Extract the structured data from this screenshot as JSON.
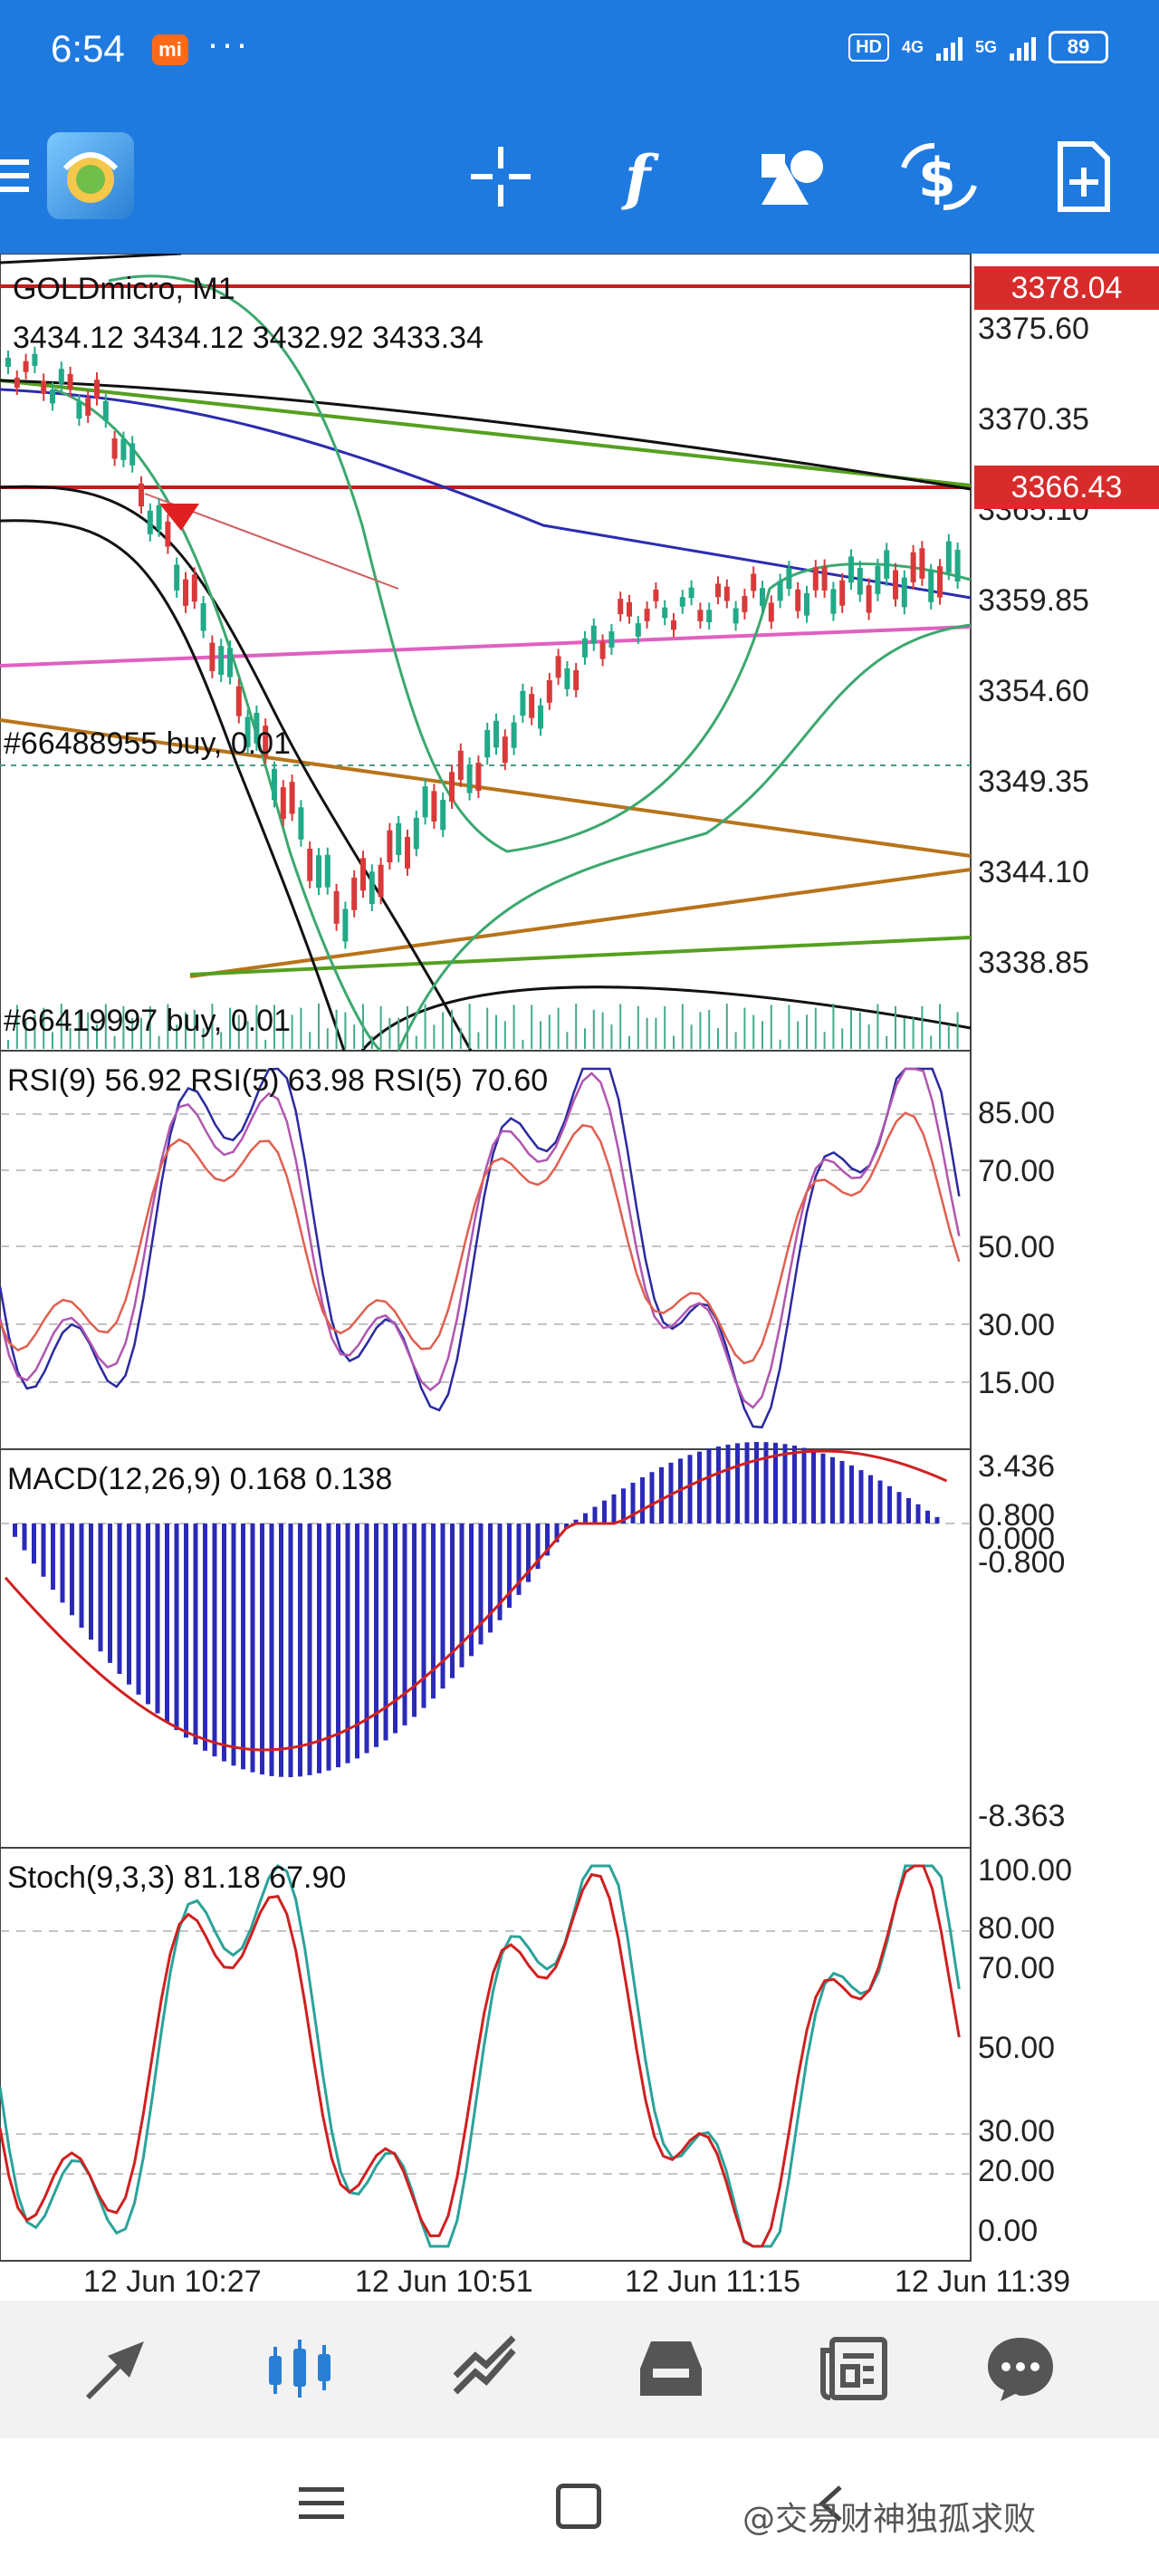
{
  "status_bar": {
    "time": "6:54",
    "badge": "mi",
    "dots": "···",
    "hd": "HD",
    "net1": "4G",
    "net2": "5G",
    "battery": "89"
  },
  "toolbar": {
    "icons": [
      "crosshair-icon",
      "function-icon",
      "objects-icon",
      "trade-dollar-icon",
      "new-order-icon"
    ]
  },
  "chart": {
    "symbol_title": "GOLDmicro, M1",
    "ohlc": "3434.12 3434.12 3432.92 3433.34",
    "order_label_1": "#66488955 buy, 0.01",
    "order_label_2": "#66419997 buy, 0.01",
    "price_ticks": [
      "3375.60",
      "3370.35",
      "3365.10",
      "3359.85",
      "3354.60",
      "3349.35",
      "3344.10",
      "3338.85"
    ],
    "price_marker_top": "3378.04",
    "price_marker_mid": "3366.43",
    "rsi_label": "RSI(9) 56.92 RSI(5) 63.98 RSI(5) 70.60",
    "rsi_ticks": [
      "85.00",
      "70.00",
      "50.00",
      "30.00",
      "15.00"
    ],
    "macd_label": "MACD(12,26,9) 0.168 0.138",
    "macd_ticks": [
      "3.436",
      "0.800",
      "0.000",
      "-0.800",
      "-8.363"
    ],
    "stoch_label": "Stoch(9,3,3) 81.18 67.90",
    "stoch_ticks": [
      "100.00",
      "80.00",
      "70.00",
      "50.00",
      "30.00",
      "20.00",
      "0.00"
    ],
    "time_labels": [
      "12 Jun 10:27",
      "12 Jun 10:51",
      "12 Jun 11:15",
      "12 Jun 11:39"
    ]
  },
  "bottom_nav": {
    "items": [
      "quotes-icon",
      "chart-icon",
      "trade-icon",
      "history-icon",
      "news-icon",
      "chat-icon"
    ],
    "active": "chart-icon"
  },
  "system_nav": {
    "items": [
      "menu-icon",
      "home-icon",
      "back-icon"
    ]
  },
  "watermark": "@交易财神独孤求败",
  "colors": {
    "accent": "#1f7ae0",
    "bull": "#22aa88",
    "bear": "#d83a3a",
    "macd_hist": "#2a2ab8"
  }
}
